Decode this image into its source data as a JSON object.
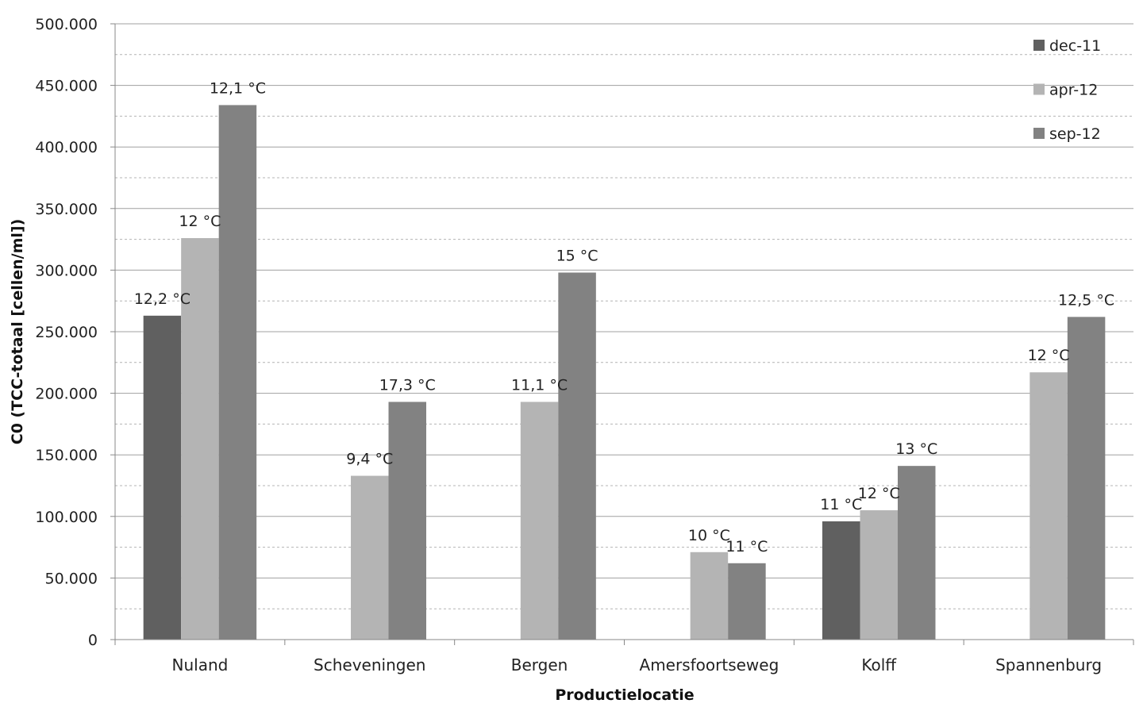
{
  "chart_data": {
    "type": "bar",
    "title": "",
    "xlabel": "Productielocatie",
    "ylabel": "C0 (TCC-totaal [cellen/ml])",
    "ylim": [
      0,
      500000
    ],
    "yticks": [
      0,
      50000,
      100000,
      150000,
      200000,
      250000,
      300000,
      350000,
      400000,
      450000,
      500000
    ],
    "ytick_labels": [
      "0",
      "50.000",
      "100.000",
      "150.000",
      "200.000",
      "250.000",
      "300.000",
      "350.000",
      "400.000",
      "450.000",
      "500.000"
    ],
    "grid": "horizontal major solid, minor dashed",
    "legend_position": "top-right",
    "categories": [
      "Nuland",
      "Scheveningen",
      "Bergen",
      "Amersfoortseweg",
      "Kolff",
      "Spannenburg"
    ],
    "series": [
      {
        "name": "dec-11",
        "color": "#606060",
        "values": [
          263000,
          null,
          null,
          null,
          96000,
          null
        ],
        "labels": [
          "12,2 °C",
          "",
          "",
          "",
          "11 °C",
          ""
        ]
      },
      {
        "name": "apr-12",
        "color": "#b4b4b4",
        "values": [
          326000,
          133000,
          193000,
          71000,
          105000,
          217000
        ],
        "labels": [
          "12  °C",
          "9,4  °C",
          "11,1 °C",
          "10 °C",
          "12 °C",
          "12 °C"
        ]
      },
      {
        "name": "sep-12",
        "color": "#828282",
        "values": [
          434000,
          193000,
          298000,
          62000,
          141000,
          262000
        ],
        "labels": [
          "12,1 °C",
          "17,3 °C",
          "15 °C",
          "11 °C",
          "13 °C",
          "12,5 °C"
        ]
      }
    ]
  }
}
